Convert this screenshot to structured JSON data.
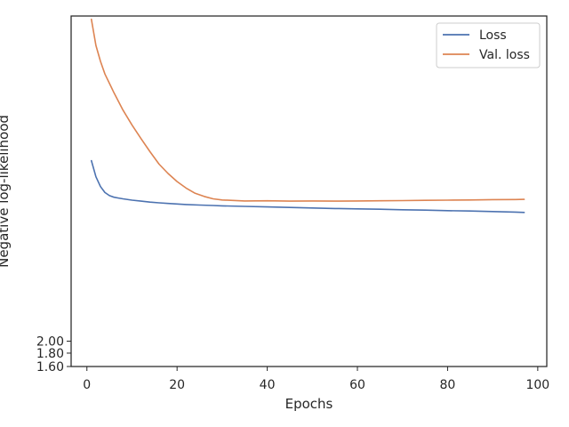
{
  "chart_data": {
    "type": "line",
    "xlabel": "Epochs",
    "ylabel": "Negative log-likelihood",
    "xlim": [
      -3.5,
      102
    ],
    "ylim": [
      1.6,
      35
    ],
    "yscale": "log",
    "grid": false,
    "legend_position": "top-right",
    "xticks": [
      0,
      20,
      40,
      60,
      80,
      100
    ],
    "xtick_labels": [
      "0",
      "20",
      "40",
      "60",
      "80",
      "100"
    ],
    "yticks": [
      1.6,
      1.8,
      2.0
    ],
    "ytick_labels": [
      "1.60",
      "1.80",
      "2.00"
    ],
    "series": [
      {
        "name": "Loss",
        "color": "#4c72b0",
        "x": [
          1,
          2,
          3,
          4,
          5,
          6,
          7,
          8,
          10,
          12,
          14,
          16,
          18,
          20,
          22,
          25,
          28,
          30,
          35,
          40,
          45,
          50,
          55,
          60,
          65,
          70,
          75,
          80,
          85,
          90,
          95,
          97
        ],
        "y": [
          9.8,
          8.5,
          7.8,
          7.4,
          7.2,
          7.1,
          7.05,
          7.0,
          6.92,
          6.86,
          6.8,
          6.76,
          6.72,
          6.69,
          6.66,
          6.63,
          6.6,
          6.58,
          6.55,
          6.52,
          6.49,
          6.46,
          6.43,
          6.41,
          6.39,
          6.36,
          6.34,
          6.31,
          6.29,
          6.26,
          6.23,
          6.21
        ]
      },
      {
        "name": "Val. loss",
        "color": "#dd8452",
        "x": [
          1,
          2,
          3,
          4,
          6,
          8,
          10,
          12,
          14,
          16,
          18,
          20,
          22,
          24,
          26,
          28,
          30,
          35,
          40,
          45,
          50,
          55,
          60,
          65,
          70,
          75,
          80,
          85,
          90,
          95,
          97
        ],
        "y": [
          34,
          27,
          23.5,
          21,
          17.8,
          15.3,
          13.4,
          11.9,
          10.6,
          9.5,
          8.75,
          8.15,
          7.7,
          7.35,
          7.15,
          7.0,
          6.93,
          6.87,
          6.88,
          6.86,
          6.87,
          6.86,
          6.87,
          6.88,
          6.89,
          6.91,
          6.92,
          6.93,
          6.95,
          6.96,
          6.97
        ]
      }
    ]
  }
}
